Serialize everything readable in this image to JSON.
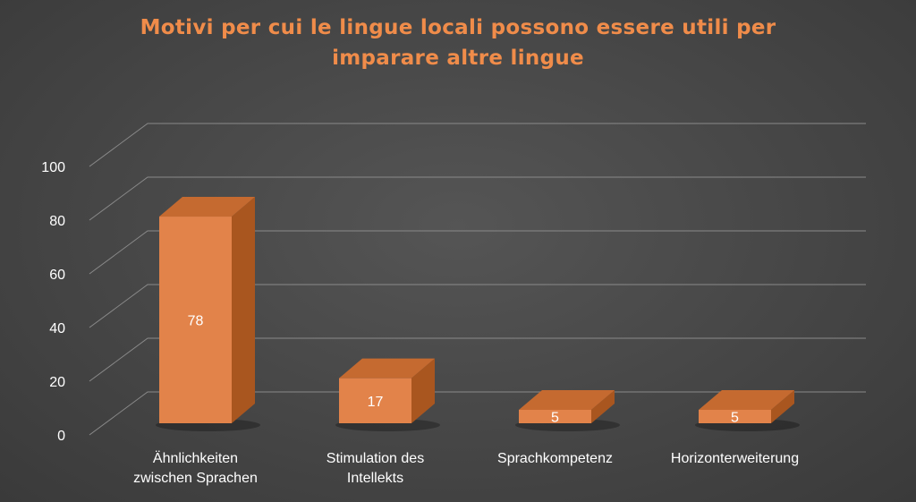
{
  "chart_data": {
    "type": "bar",
    "style": "3d-column",
    "title_lines": [
      "Motivi per cui le lingue locali possono essere utili per",
      "imparare altre lingue"
    ],
    "categories": [
      "Ähnlichkeiten\nzwischen Sprachen",
      "Stimulation des\nIntellekts",
      "Sprachkompetenz",
      "Horizonterweiterung"
    ],
    "values": [
      78,
      17,
      5,
      5
    ],
    "data_labels": [
      "78",
      "17",
      "5",
      "5"
    ],
    "y_ticks": [
      "0",
      "20",
      "40",
      "60",
      "80",
      "100"
    ],
    "ylim": [
      0,
      100
    ],
    "grid": true,
    "legend": "none"
  },
  "colors": {
    "title": "#F08C4A",
    "bar_front": "#E2834A",
    "bar_top": "#C56A30",
    "bar_side": "#A9561F",
    "grid": "#8a8a8a",
    "text": "#ffffff"
  }
}
